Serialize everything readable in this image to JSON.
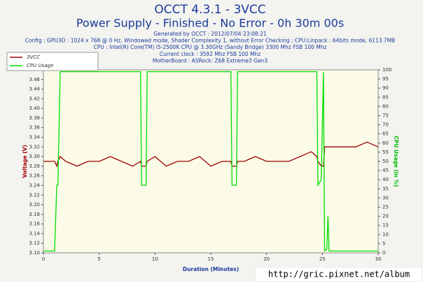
{
  "chart_data": {
    "type": "line",
    "title": "OCCT 4.3.1 - 3VCC",
    "subtitle": "Power Supply - Finished - No Error - 0h 30m 00s",
    "info_lines": [
      "Generated by OCCT : 2012/07/04 23:08:21",
      "Config : GPU3D : 1024 x 768 @ 0 Hz, Windowed mode, Shader Complexity 1, without Error Checking ; CPU:Linpack : 64bits mode, 6113.7MB",
      "CPU : Intel(R) Core(TM) i5-2500K CPU @ 3.30GHz (Sandy Bridge) 3300 Mhz FSB 100 Mhz",
      "Current clock : 3592 Mhz FSB 100 Mhz",
      "MotherBoard : ASRock: Z68 Extreme3 Gen3"
    ],
    "x_label": "Duration (Minutes)",
    "y_label": "Voltage (V)",
    "y2_label": "CPU Usage (in %)",
    "watermark": "http://gric.pixnet.net/album",
    "x": [
      0,
      0.5,
      1,
      1.2,
      1.3,
      1.5,
      2,
      3,
      4,
      5,
      6,
      7,
      8,
      8.7,
      8.8,
      9,
      9.2,
      9.3,
      10,
      11,
      12,
      13,
      14,
      15,
      16,
      16.8,
      16.9,
      17.1,
      17.3,
      17.4,
      18,
      19,
      20,
      21,
      22,
      23,
      24,
      24.5,
      24.6,
      24.9,
      25.1,
      25.2,
      25.4,
      25.5,
      25.6,
      26,
      27,
      28,
      29,
      30
    ],
    "series": [
      {
        "name": "3VCC",
        "color": "#a00000",
        "values": [
          3.29,
          3.29,
          3.29,
          3.28,
          3.29,
          3.3,
          3.29,
          3.28,
          3.29,
          3.29,
          3.3,
          3.29,
          3.28,
          3.29,
          3.28,
          3.28,
          3.28,
          3.29,
          3.3,
          3.28,
          3.29,
          3.29,
          3.3,
          3.28,
          3.29,
          3.29,
          3.28,
          3.28,
          3.28,
          3.29,
          3.29,
          3.3,
          3.29,
          3.29,
          3.29,
          3.3,
          3.31,
          3.3,
          3.29,
          3.28,
          3.28,
          3.32,
          3.32,
          3.32,
          3.32,
          3.32,
          3.32,
          3.32,
          3.33,
          3.32
        ]
      },
      {
        "name": "CPU Usage",
        "color": "#00dd00",
        "axis": "y2",
        "values": [
          1,
          1,
          1,
          37,
          37,
          99,
          99,
          99,
          99,
          99,
          99,
          99,
          99,
          99,
          37,
          37,
          37,
          99,
          99,
          99,
          99,
          99,
          99,
          99,
          99,
          99,
          37,
          37,
          37,
          99,
          99,
          99,
          99,
          99,
          99,
          99,
          99,
          99,
          37,
          40,
          99,
          1,
          2,
          20,
          1,
          1,
          1,
          1,
          1,
          1
        ]
      }
    ],
    "xlim": [
      0,
      30
    ],
    "xticks": [
      0,
      5,
      10,
      15,
      20,
      25,
      30
    ],
    "ylim": [
      3.1,
      3.48
    ],
    "yticks": [
      {
        "value": 3.1,
        "label": "3.10"
      },
      3.12,
      3.14,
      3.16,
      3.18,
      {
        "value": 3.2,
        "label": "3.20"
      },
      3.22,
      3.24,
      3.26,
      3.28,
      {
        "value": 3.3,
        "label": "3.30"
      },
      3.32,
      3.34,
      3.36,
      3.38,
      {
        "value": 3.4,
        "label": "3.40"
      },
      3.42,
      3.44,
      3.46
    ],
    "y2lim": [
      0,
      100
    ],
    "y2ticks": [
      0,
      5,
      10,
      15,
      20,
      25,
      30,
      35,
      40,
      45,
      50,
      55,
      60,
      65,
      70,
      75,
      80,
      85,
      90,
      95,
      100
    ]
  }
}
